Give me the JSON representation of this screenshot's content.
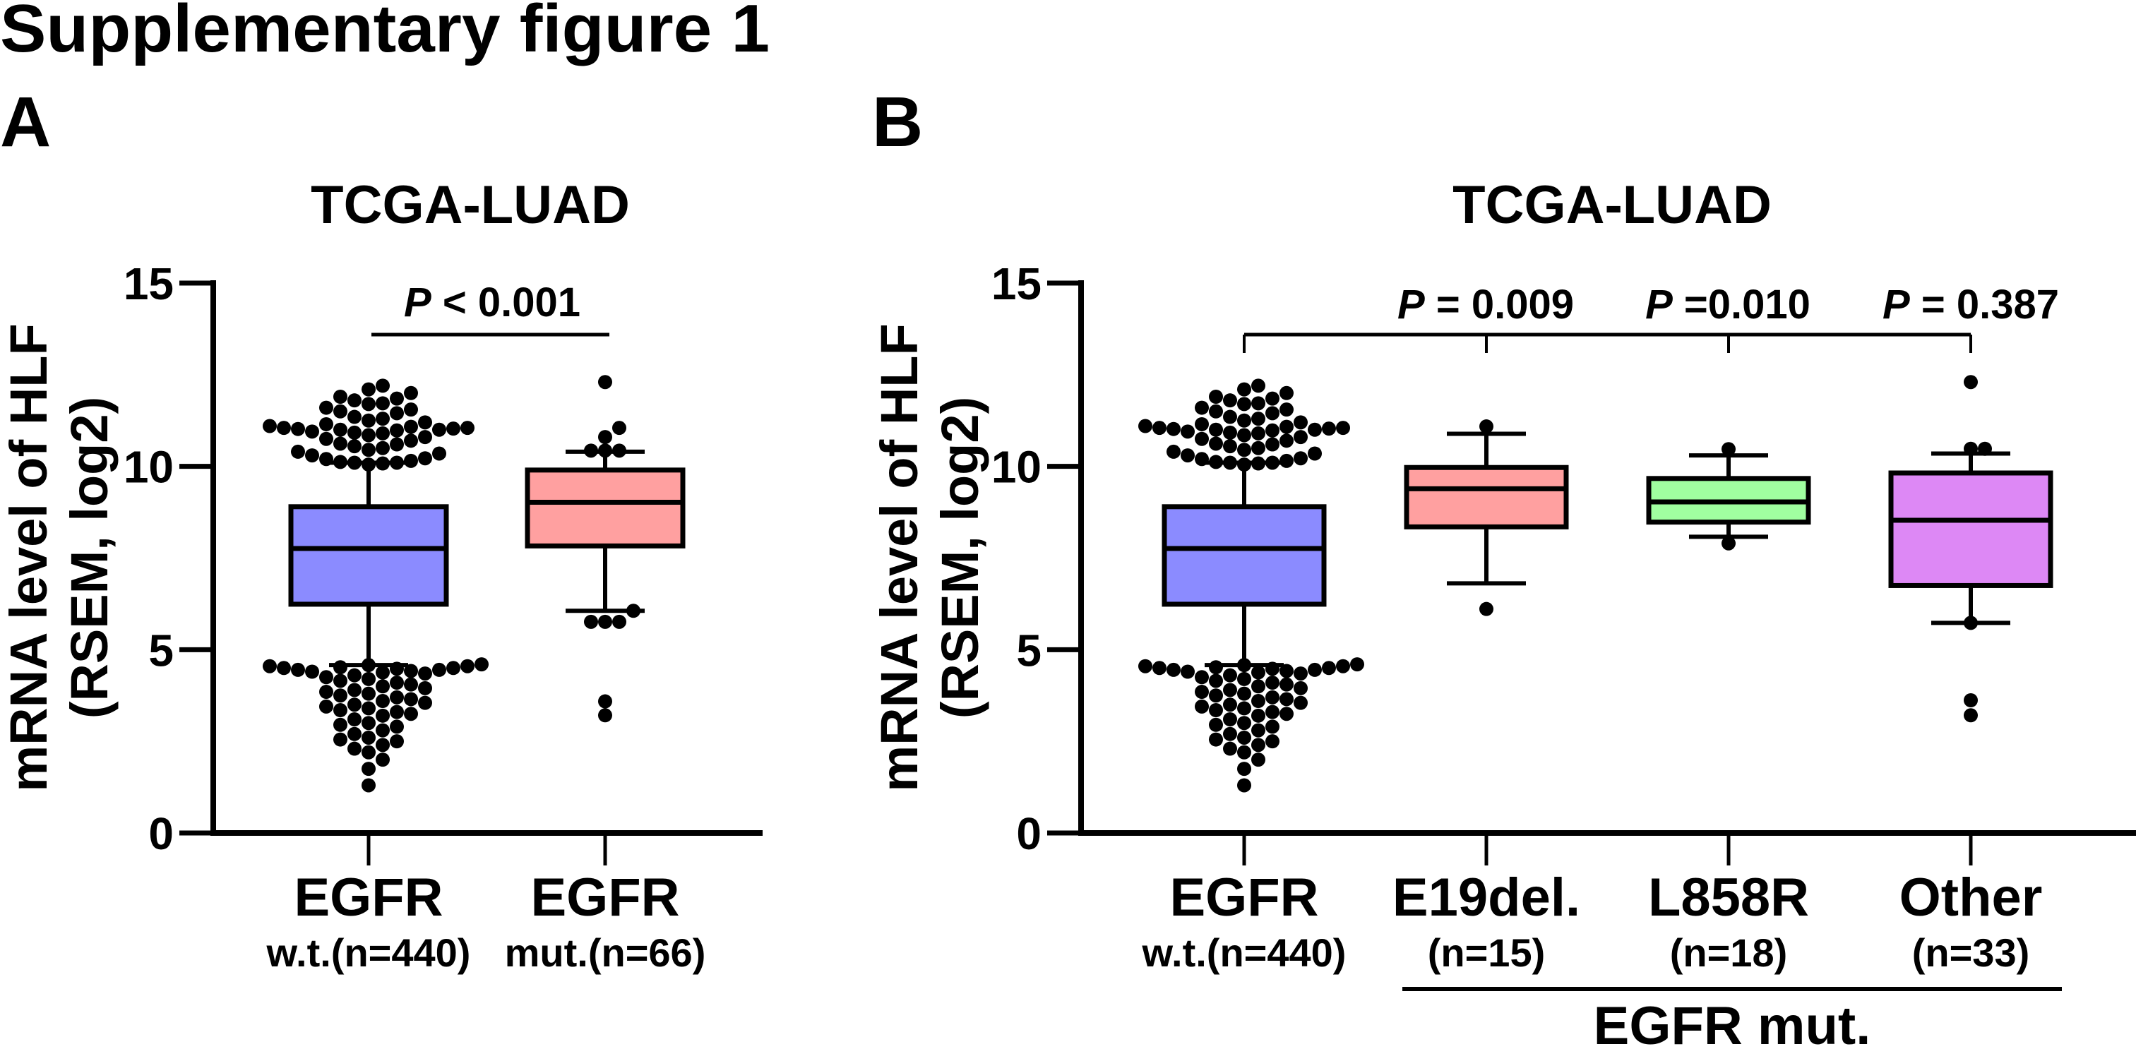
{
  "figure_title": "Supplementary figure 1",
  "chart_data": [
    {
      "panel": "A",
      "type": "box",
      "title": "TCGA-LUAD",
      "ylabel_line1": "mRNA level of HLF",
      "ylabel_line2": "(RSEM, log2)",
      "ylim": [
        0,
        15
      ],
      "yticks": [
        "0",
        "5",
        "10",
        "15"
      ],
      "categories": [
        {
          "label": "EGFR",
          "sublabel": "w.t.(n=440)",
          "color": "#8b8bff",
          "whisker_low": 4.58,
          "q1": 6.24,
          "median": 7.76,
          "q3": 8.9,
          "whisker_high": 10.1,
          "outliers": [
            10.05,
            10.08,
            10.1,
            10.1,
            10.12,
            10.15,
            10.2,
            10.22,
            10.3,
            10.35,
            10.4,
            10.45,
            10.5,
            10.55,
            10.6,
            10.62,
            10.7,
            10.75,
            10.8,
            10.85,
            10.9,
            10.92,
            10.95,
            10.98,
            11.0,
            11.0,
            11.02,
            11.03,
            11.05,
            11.05,
            11.08,
            11.1,
            11.15,
            11.2,
            11.25,
            11.3,
            11.35,
            11.45,
            11.5,
            11.55,
            11.6,
            11.7,
            11.72,
            11.8,
            11.85,
            11.9,
            12.0,
            12.1,
            12.2,
            4.6,
            4.58,
            4.55,
            4.55,
            4.52,
            4.5,
            4.5,
            4.48,
            4.45,
            4.45,
            4.42,
            4.4,
            4.38,
            4.35,
            4.3,
            4.25,
            4.2,
            4.15,
            4.1,
            4.05,
            4.0,
            3.95,
            3.9,
            3.85,
            3.8,
            3.75,
            3.7,
            3.65,
            3.6,
            3.55,
            3.5,
            3.45,
            3.4,
            3.35,
            3.3,
            3.25,
            3.2,
            3.1,
            3.0,
            2.95,
            2.9,
            2.8,
            2.7,
            2.6,
            2.55,
            2.5,
            2.4,
            2.3,
            2.2,
            2.0,
            1.75,
            1.3
          ]
        },
        {
          "label": "EGFR",
          "sublabel": "mut.(n=66)",
          "color": "#ffa0a0",
          "whisker_low": 6.06,
          "q1": 7.83,
          "median": 9.02,
          "q3": 9.9,
          "whisker_high": 10.4,
          "outliers": [
            12.3,
            11.05,
            10.8,
            10.43,
            10.43,
            10.43,
            6.06,
            5.76,
            5.76,
            5.76,
            3.59,
            3.21
          ]
        }
      ],
      "comparisons": [
        {
          "p_prefix": "P",
          "p_text": " < 0.001"
        }
      ]
    },
    {
      "panel": "B",
      "type": "box",
      "title": "TCGA-LUAD",
      "ylabel_line1": "mRNA level of HLF",
      "ylabel_line2": "(RSEM, log2)",
      "ylim": [
        0,
        15
      ],
      "yticks": [
        "0",
        "5",
        "10",
        "15"
      ],
      "group_label": "EGFR mut.",
      "categories": [
        {
          "label": "EGFR",
          "sublabel": "w.t.(n=440)",
          "color": "#8b8bff",
          "whisker_low": 4.58,
          "q1": 6.24,
          "median": 7.76,
          "q3": 8.9,
          "whisker_high": 10.1,
          "outliers": [
            10.05,
            10.08,
            10.1,
            10.1,
            10.12,
            10.15,
            10.2,
            10.22,
            10.3,
            10.35,
            10.4,
            10.45,
            10.5,
            10.55,
            10.6,
            10.62,
            10.7,
            10.75,
            10.8,
            10.85,
            10.9,
            10.92,
            10.95,
            10.98,
            11.0,
            11.0,
            11.02,
            11.03,
            11.05,
            11.05,
            11.08,
            11.1,
            11.15,
            11.2,
            11.25,
            11.3,
            11.35,
            11.45,
            11.5,
            11.55,
            11.6,
            11.7,
            11.72,
            11.8,
            11.85,
            11.9,
            12.0,
            12.1,
            12.2,
            4.6,
            4.58,
            4.55,
            4.55,
            4.52,
            4.5,
            4.5,
            4.48,
            4.45,
            4.45,
            4.42,
            4.4,
            4.38,
            4.35,
            4.3,
            4.25,
            4.2,
            4.15,
            4.1,
            4.05,
            4.0,
            3.95,
            3.9,
            3.85,
            3.8,
            3.75,
            3.7,
            3.65,
            3.6,
            3.55,
            3.5,
            3.45,
            3.4,
            3.35,
            3.3,
            3.25,
            3.2,
            3.1,
            3.0,
            2.95,
            2.9,
            2.8,
            2.7,
            2.6,
            2.55,
            2.5,
            2.4,
            2.3,
            2.2,
            2.0,
            1.75,
            1.3
          ]
        },
        {
          "label": "E19del.",
          "sublabel": "(n=15)",
          "color": "#ffa0a0",
          "whisker_low": 6.81,
          "q1": 8.35,
          "median": 9.39,
          "q3": 9.97,
          "whisker_high": 10.89,
          "outliers": [
            11.09,
            6.11
          ]
        },
        {
          "label": "L858R",
          "sublabel": "(n=18)",
          "color": "#a0ffa0",
          "whisker_low": 8.08,
          "q1": 8.48,
          "median": 9.03,
          "q3": 9.67,
          "whisker_high": 10.3,
          "outliers": [
            10.47,
            7.9
          ]
        },
        {
          "label": "Other",
          "sublabel": "(n=33)",
          "color": "#dd88f5",
          "whisker_low": 5.73,
          "q1": 6.75,
          "median": 8.53,
          "q3": 9.82,
          "whisker_high": 10.35,
          "outliers": [
            12.3,
            10.48,
            10.48,
            5.73,
            3.62,
            3.21
          ]
        }
      ],
      "comparisons": [
        {
          "p_prefix": "P",
          "p_text": " = 0.009"
        },
        {
          "p_prefix": "P",
          "p_text": " =0.010"
        },
        {
          "p_prefix": "P",
          "p_text": " = 0.387"
        }
      ]
    }
  ]
}
